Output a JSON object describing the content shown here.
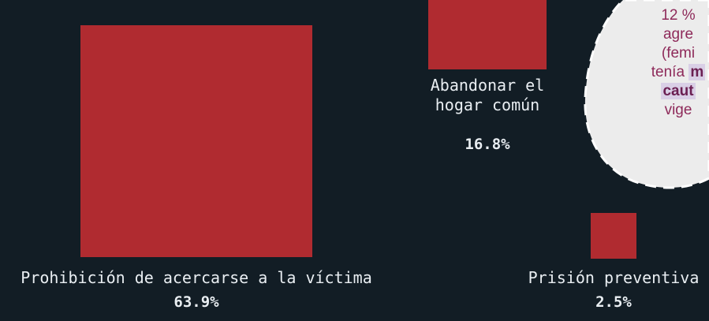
{
  "chart_data": {
    "type": "area",
    "encoding": "proportional squares",
    "color": "#b02b30",
    "background": "#121d25",
    "items": [
      {
        "label_lines": [
          "Prohibición de acercarse a la víctima"
        ],
        "value": 63.9,
        "display": "63.9%"
      },
      {
        "label_lines": [
          "Abandonar el",
          "hogar común"
        ],
        "value": 16.8,
        "display": "16.8%"
      },
      {
        "label_lines": [
          "Prisión preventiva"
        ],
        "value": 2.5,
        "display": "2.5%"
      }
    ]
  },
  "callout": {
    "lines": [
      {
        "parts": [
          {
            "text": "12 %"
          }
        ]
      },
      {
        "parts": [
          {
            "text": "agre"
          }
        ]
      },
      {
        "parts": [
          {
            "text": "(femi"
          }
        ]
      },
      {
        "parts": [
          {
            "text": "tenía "
          },
          {
            "text": "m",
            "highlight": true
          }
        ]
      },
      {
        "parts": [
          {
            "text": "caut",
            "highlight": true
          }
        ]
      },
      {
        "parts": [
          {
            "text": "vige"
          }
        ]
      }
    ],
    "fill": "#ececec",
    "text_color": "#8e2a5a"
  }
}
